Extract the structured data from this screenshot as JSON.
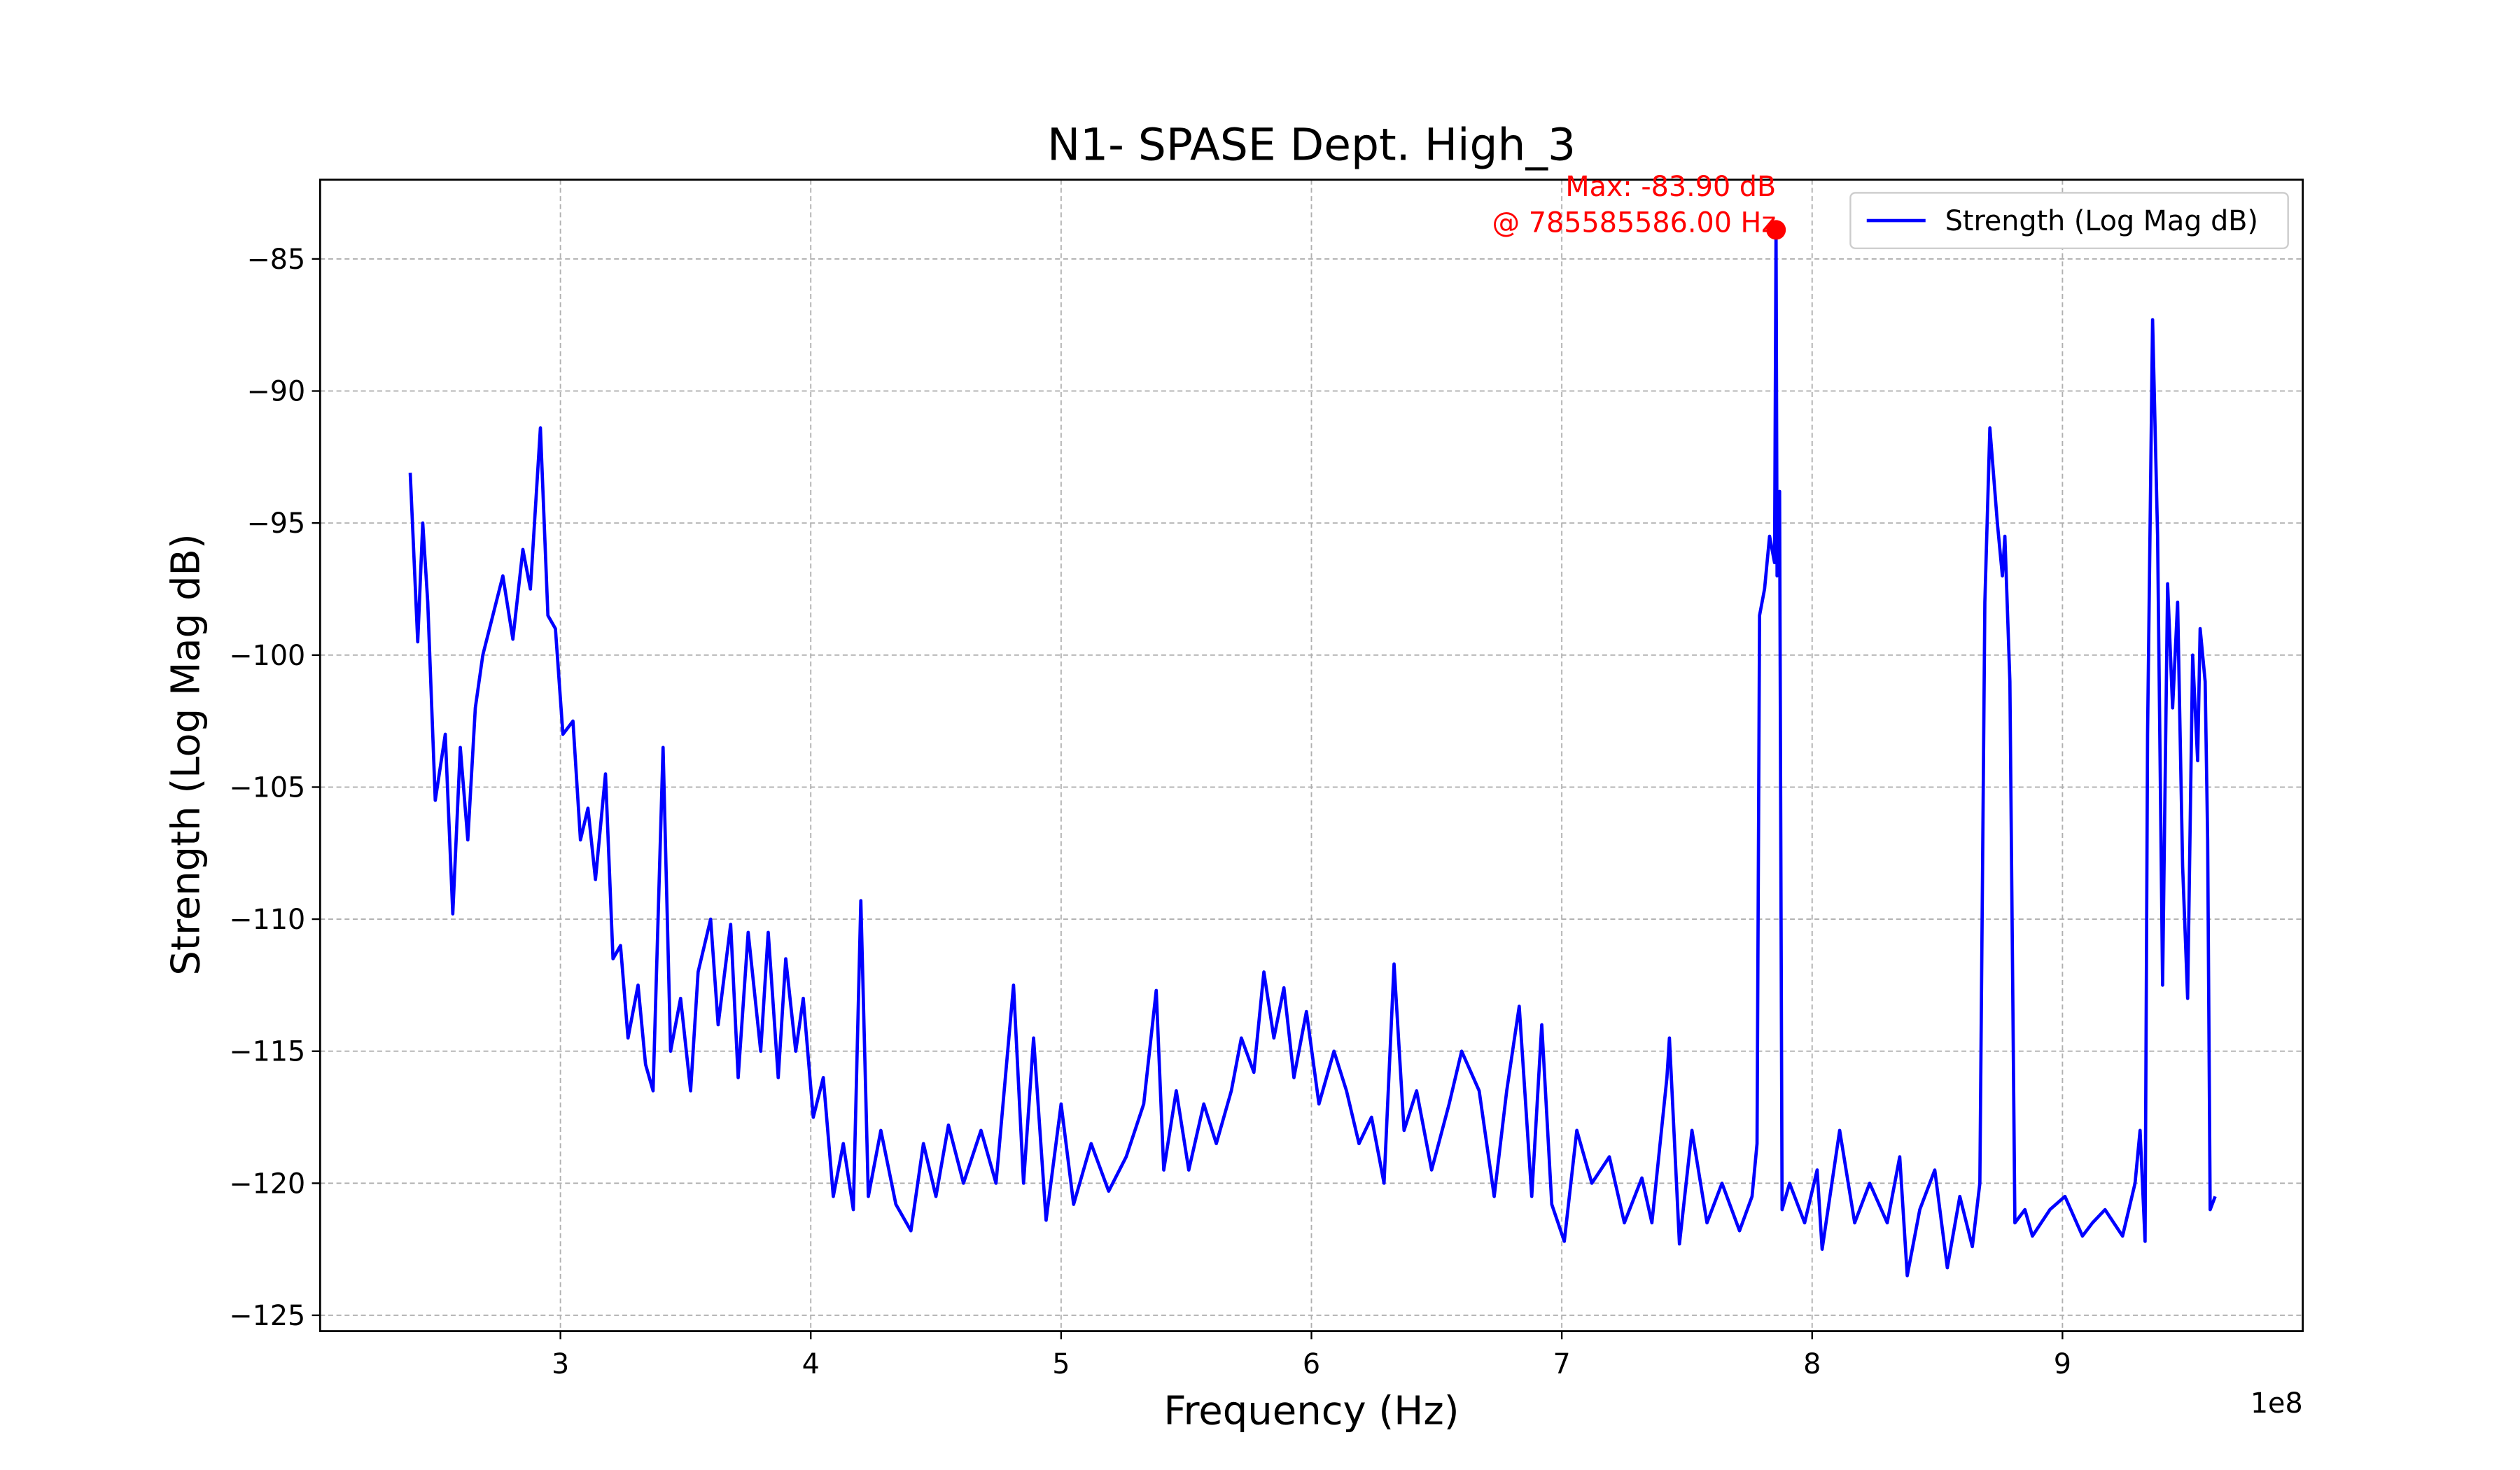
{
  "chart_data": {
    "type": "line",
    "title": "N1- SPASE Dept. High_3",
    "x_label": "Frequency (Hz)",
    "y_label": "Strength (Log Mag dB)",
    "x_offset_label": "1e8",
    "x": [
      240000000,
      243000000,
      245000000,
      247000000,
      250000000,
      254000000,
      257000000,
      260000000,
      263000000,
      266000000,
      269000000,
      273000000,
      277000000,
      281000000,
      285000000,
      288000000,
      292000000,
      295000000,
      298000000,
      301000000,
      305000000,
      308000000,
      311000000,
      314000000,
      318000000,
      321000000,
      324000000,
      327000000,
      331000000,
      334000000,
      337000000,
      341000000,
      344000000,
      348000000,
      352000000,
      355000000,
      360000000,
      363000000,
      368000000,
      371000000,
      375000000,
      380000000,
      383000000,
      387000000,
      390000000,
      394000000,
      397000000,
      401000000,
      405000000,
      409000000,
      413000000,
      417000000,
      420000000,
      423000000,
      428000000,
      434000000,
      440000000,
      445000000,
      450000000,
      455000000,
      461000000,
      468000000,
      474000000,
      481000000,
      485000000,
      489000000,
      494000000,
      500000000,
      505000000,
      512000000,
      519000000,
      526000000,
      533000000,
      538000000,
      541000000,
      546000000,
      551000000,
      557000000,
      562000000,
      568000000,
      572000000,
      577000000,
      581000000,
      585000000,
      589000000,
      593000000,
      598000000,
      603000000,
      609000000,
      614000000,
      619000000,
      624000000,
      629000000,
      633000000,
      637000000,
      642000000,
      648000000,
      655000000,
      660000000,
      667000000,
      673000000,
      678000000,
      683000000,
      688000000,
      692000000,
      696000000,
      701000000,
      706000000,
      712000000,
      719000000,
      725000000,
      732000000,
      736000000,
      742000000,
      743000000,
      747000000,
      752000000,
      758000000,
      764000000,
      771000000,
      776000000,
      778000000,
      779000000,
      781000000,
      783000000,
      785000000,
      785585586,
      786000000,
      787000000,
      788000000,
      791000000,
      797000000,
      802000000,
      804000000,
      811000000,
      817000000,
      823000000,
      830000000,
      835000000,
      838000000,
      843000000,
      849000000,
      854000000,
      859000000,
      864000000,
      867000000,
      869000000,
      871000000,
      874000000,
      876000000,
      877000000,
      879000000,
      881000000,
      885000000,
      888000000,
      895000000,
      901000000,
      908000000,
      912000000,
      917000000,
      924000000,
      929000000,
      931000000,
      933000000,
      934000000,
      936000000,
      938000000,
      940000000,
      942000000,
      944000000,
      946000000,
      948000000,
      950000000,
      952000000,
      954000000,
      955000000,
      957000000,
      958000000,
      959000000,
      961000000
    ],
    "series": [
      {
        "name": "Strength (Log Mag dB)",
        "color": "#0000ff",
        "values": [
          -93.1,
          -99.5,
          -95.0,
          -98.0,
          -105.5,
          -103.0,
          -109.8,
          -103.5,
          -107.0,
          -102.0,
          -100.0,
          -98.5,
          -97.0,
          -99.4,
          -96.0,
          -97.5,
          -91.4,
          -98.5,
          -99.0,
          -103.0,
          -102.5,
          -107.0,
          -105.8,
          -108.5,
          -104.5,
          -111.5,
          -111.0,
          -114.5,
          -112.5,
          -115.5,
          -116.5,
          -103.5,
          -115.0,
          -113.0,
          -116.5,
          -112.0,
          -110.0,
          -114.0,
          -110.2,
          -116.0,
          -110.5,
          -115.0,
          -110.5,
          -116.0,
          -111.5,
          -115.0,
          -113.0,
          -117.5,
          -116.0,
          -120.5,
          -118.5,
          -121.0,
          -109.3,
          -120.5,
          -118.0,
          -120.8,
          -121.8,
          -118.5,
          -120.5,
          -117.8,
          -120.0,
          -118.0,
          -120.0,
          -112.5,
          -120.0,
          -114.5,
          -121.4,
          -117.0,
          -120.8,
          -118.5,
          -120.3,
          -119.0,
          -117.0,
          -112.7,
          -119.5,
          -116.5,
          -119.5,
          -117.0,
          -118.5,
          -116.5,
          -114.5,
          -115.8,
          -112.0,
          -114.5,
          -112.6,
          -116.0,
          -113.5,
          -117.0,
          -115.0,
          -116.5,
          -118.5,
          -117.5,
          -120.0,
          -111.7,
          -118.0,
          -116.5,
          -119.5,
          -117.0,
          -115.0,
          -116.5,
          -120.5,
          -116.5,
          -113.3,
          -120.5,
          -114.0,
          -120.8,
          -122.2,
          -118.0,
          -120.0,
          -119.0,
          -121.5,
          -119.8,
          -121.5,
          -116.0,
          -114.5,
          -122.3,
          -118.0,
          -121.5,
          -120.0,
          -121.8,
          -120.5,
          -118.5,
          -98.5,
          -97.5,
          -95.5,
          -96.5,
          -83.9,
          -97.0,
          -93.8,
          -121.0,
          -120.0,
          -121.5,
          -119.5,
          -122.5,
          -118.0,
          -121.5,
          -120.0,
          -121.5,
          -119.0,
          -123.5,
          -121.0,
          -119.5,
          -123.2,
          -120.5,
          -122.4,
          -120.0,
          -98.0,
          -91.4,
          -95.0,
          -97.0,
          -95.5,
          -101.0,
          -121.5,
          -121.0,
          -122.0,
          -121.0,
          -120.5,
          -122.0,
          -121.5,
          -121.0,
          -122.0,
          -120.0,
          -118.0,
          -122.2,
          -103.0,
          -87.3,
          -95.5,
          -112.5,
          -97.3,
          -102.0,
          -98.0,
          -108.0,
          -113.0,
          -100.0,
          -104.0,
          -99.0,
          -101.0,
          -107.0,
          -121.0,
          -120.5
        ]
      }
    ],
    "annotation": {
      "x": 785585586,
      "y": -83.9,
      "color": "#ff0000",
      "lines": [
        "Max: -83.90 dB",
        "@ 785585586.00 Hz"
      ]
    },
    "xlim": [
      204000000,
      996000000
    ],
    "ylim": [
      -125.6,
      -82.0
    ],
    "xticks": [
      {
        "value": 300000000,
        "label": "3"
      },
      {
        "value": 400000000,
        "label": "4"
      },
      {
        "value": 500000000,
        "label": "5"
      },
      {
        "value": 600000000,
        "label": "6"
      },
      {
        "value": 700000000,
        "label": "7"
      },
      {
        "value": 800000000,
        "label": "8"
      },
      {
        "value": 900000000,
        "label": "9"
      }
    ],
    "yticks": [
      -125,
      -120,
      -115,
      -110,
      -105,
      -100,
      -95,
      -90,
      -85
    ],
    "y_tick_labels": [
      "−125",
      "−120",
      "−115",
      "−110",
      "−105",
      "−100",
      "−95",
      "−90",
      "−85"
    ],
    "grid": true,
    "legend": "upper right"
  }
}
